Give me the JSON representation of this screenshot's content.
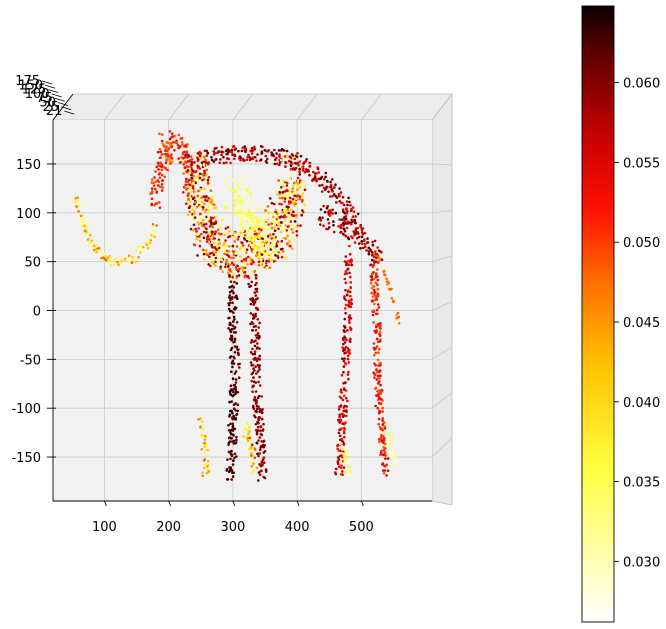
{
  "chart_data": {
    "type": "scatter",
    "title": "",
    "xlabel": "",
    "ylabel": "",
    "zlabel": "",
    "projection": "3d",
    "grid": true,
    "pane_color": "#f2f2f2",
    "xlim": [
      20,
      610
    ],
    "ylim": [
      -195,
      195
    ],
    "x_ticks": [
      100,
      200,
      300,
      400,
      500
    ],
    "y_ticks": [
      -150,
      -100,
      -50,
      0,
      50,
      100,
      150
    ],
    "z_ticks": [
      "175",
      "150",
      "125",
      "100",
      "75",
      "50",
      "25",
      "0",
      "-25"
    ],
    "z_ticks_visible": [
      "175",
      "150",
      "125",
      "100",
      "75",
      "50",
      "25",
      "21"
    ],
    "colormap": "hot_r",
    "colorbar": {
      "min": 0.0262,
      "max": 0.0648,
      "ticks": [
        "0.030",
        "0.035",
        "0.040",
        "0.045",
        "0.050",
        "0.055",
        "0.060"
      ],
      "tick_values": [
        0.03,
        0.035,
        0.04,
        0.045,
        0.05,
        0.055,
        0.06
      ]
    },
    "point_color_range": [
      0.0262,
      0.0648
    ],
    "skeleton_segments": [
      {
        "name": "trunk",
        "pts": [
          [
            55,
            115
          ],
          [
            60,
            100
          ],
          [
            75,
            75
          ],
          [
            95,
            55
          ],
          [
            120,
            48
          ],
          [
            150,
            55
          ],
          [
            170,
            70
          ],
          [
            180,
            90
          ]
        ],
        "w": 8,
        "v": [
          0.028,
          0.045
        ]
      },
      {
        "name": "skull",
        "pts": [
          [
            180,
            110
          ],
          [
            185,
            135
          ],
          [
            195,
            160
          ],
          [
            210,
            175
          ],
          [
            225,
            160
          ],
          [
            235,
            140
          ],
          [
            230,
            118
          ]
        ],
        "w": 18,
        "v": [
          0.044,
          0.052
        ]
      },
      {
        "name": "tusk",
        "pts": [
          [
            185,
            180
          ],
          [
            195,
            170
          ],
          [
            205,
            150
          ]
        ],
        "w": 5,
        "v": [
          0.042,
          0.048
        ]
      },
      {
        "name": "spine",
        "pts": [
          [
            230,
            150
          ],
          [
            270,
            158
          ],
          [
            310,
            160
          ],
          [
            350,
            160
          ],
          [
            390,
            155
          ],
          [
            430,
            140
          ],
          [
            460,
            120
          ],
          [
            490,
            95
          ]
        ],
        "w": 14,
        "v": [
          0.05,
          0.062
        ]
      },
      {
        "name": "ribcage",
        "pts": [
          [
            240,
            140
          ],
          [
            250,
            100
          ],
          [
            265,
            70
          ],
          [
            300,
            55
          ],
          [
            340,
            60
          ],
          [
            370,
            80
          ],
          [
            390,
            110
          ],
          [
            395,
            140
          ]
        ],
        "w": 40,
        "v": [
          0.03,
          0.06
        ]
      },
      {
        "name": "ribs-light",
        "pts": [
          [
            300,
            120
          ],
          [
            320,
            100
          ],
          [
            340,
            80
          ],
          [
            350,
            60
          ]
        ],
        "w": 30,
        "v": [
          0.029,
          0.036
        ]
      },
      {
        "name": "pelvis",
        "pts": [
          [
            440,
            100
          ],
          [
            460,
            90
          ],
          [
            490,
            80
          ],
          [
            510,
            70
          ],
          [
            525,
            50
          ]
        ],
        "w": 18,
        "v": [
          0.05,
          0.063
        ]
      },
      {
        "name": "tail",
        "pts": [
          [
            525,
            60
          ],
          [
            540,
            30
          ],
          [
            555,
            0
          ],
          [
            560,
            -20
          ]
        ],
        "w": 4,
        "v": [
          0.042,
          0.046
        ]
      },
      {
        "name": "front-leg-left",
        "pts": [
          [
            300,
            30
          ],
          [
            300,
            -20
          ],
          [
            305,
            -60
          ],
          [
            300,
            -110
          ],
          [
            300,
            -150
          ],
          [
            295,
            -170
          ]
        ],
        "w": 14,
        "v": [
          0.058,
          0.064
        ]
      },
      {
        "name": "front-leg-right",
        "pts": [
          [
            330,
            30
          ],
          [
            335,
            -20
          ],
          [
            335,
            -60
          ],
          [
            340,
            -110
          ],
          [
            345,
            -150
          ],
          [
            345,
            -170
          ]
        ],
        "w": 14,
        "v": [
          0.054,
          0.06
        ]
      },
      {
        "name": "front-foot-left",
        "pts": [
          [
            250,
            -115
          ],
          [
            255,
            -140
          ],
          [
            258,
            -165
          ]
        ],
        "w": 10,
        "v": [
          0.033,
          0.046
        ]
      },
      {
        "name": "front-foot-right",
        "pts": [
          [
            320,
            -120
          ],
          [
            330,
            -145
          ],
          [
            335,
            -165
          ]
        ],
        "w": 10,
        "v": [
          0.034,
          0.05
        ]
      },
      {
        "name": "hind-leg-left",
        "pts": [
          [
            480,
            60
          ],
          [
            480,
            20
          ],
          [
            478,
            -20
          ],
          [
            475,
            -70
          ],
          [
            470,
            -110
          ],
          [
            468,
            -150
          ],
          [
            465,
            -170
          ]
        ],
        "w": 12,
        "v": [
          0.048,
          0.058
        ]
      },
      {
        "name": "hind-leg-right",
        "pts": [
          [
            520,
            60
          ],
          [
            520,
            20
          ],
          [
            525,
            -20
          ],
          [
            525,
            -70
          ],
          [
            530,
            -110
          ],
          [
            535,
            -150
          ],
          [
            540,
            -165
          ]
        ],
        "w": 12,
        "v": [
          0.044,
          0.054
        ]
      },
      {
        "name": "hind-foot-right",
        "pts": [
          [
            540,
            -120
          ],
          [
            548,
            -140
          ],
          [
            552,
            -160
          ]
        ],
        "w": 10,
        "v": [
          0.027,
          0.033
        ]
      },
      {
        "name": "hind-foot-left",
        "pts": [
          [
            470,
            -140
          ],
          [
            478,
            -160
          ],
          [
            482,
            -172
          ]
        ],
        "w": 8,
        "v": [
          0.03,
          0.036
        ]
      }
    ]
  }
}
